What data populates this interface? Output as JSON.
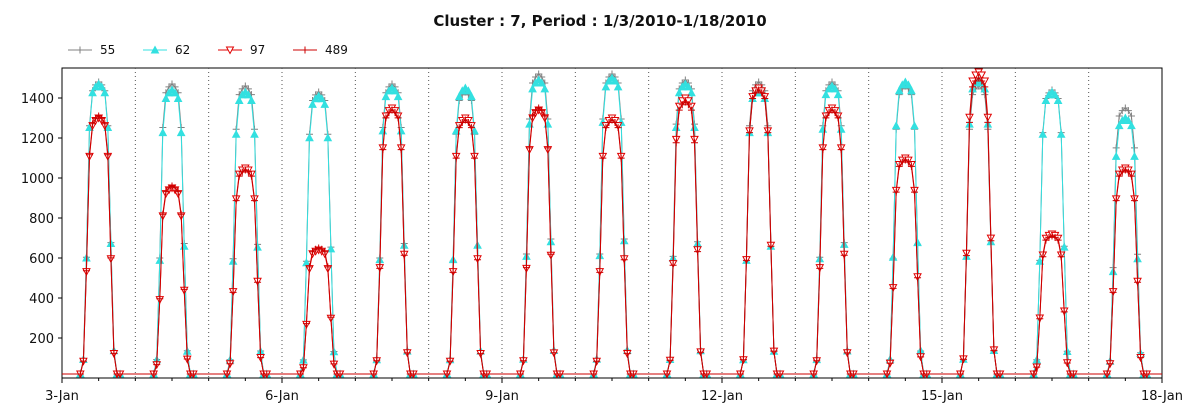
{
  "chart_data": {
    "type": "line",
    "title": "Cluster : 7, Period : 1/3/2010-1/18/2010",
    "xlabel": "",
    "ylabel": "",
    "x_range": [
      "2010-01-03",
      "2010-01-18"
    ],
    "x_ticks": [
      {
        "date": "2010-01-03",
        "label": "3-Jan"
      },
      {
        "date": "2010-01-06",
        "label": "6-Jan"
      },
      {
        "date": "2010-01-09",
        "label": "9-Jan"
      },
      {
        "date": "2010-01-12",
        "label": "12-Jan"
      },
      {
        "date": "2010-01-15",
        "label": "15-Jan"
      },
      {
        "date": "2010-01-18",
        "label": "18-Jan"
      }
    ],
    "ylim": [
      0,
      1550
    ],
    "y_ticks": [
      200,
      400,
      600,
      800,
      1000,
      1200,
      1400
    ],
    "grid": "vertical dotted lines at each day",
    "legend_position": "top-left",
    "colors": {
      "55": "#808080",
      "62": "#33e0e0",
      "97": "#e00000",
      "489": "#cc0000"
    },
    "day_template": {
      "hour": [
        6,
        7,
        8,
        9,
        10,
        11,
        12,
        13,
        14,
        15,
        16,
        17,
        18,
        19
      ],
      "shape": [
        0,
        0.05,
        0.4,
        0.85,
        0.97,
        0.99,
        1.0,
        0.99,
        0.97,
        0.85,
        0.45,
        0.08,
        0,
        0
      ]
    },
    "days": [
      {
        "date": "2010-01-03",
        "peaks": {
          "55": 1480,
          "62": 1470,
          "97": 1300,
          "489": 1310
        }
      },
      {
        "date": "2010-01-04",
        "peaks": {
          "55": 1470,
          "62": 1440,
          "97": 950,
          "489": 960
        }
      },
      {
        "date": "2010-01-05",
        "peaks": {
          "55": 1460,
          "62": 1430,
          "97": 1050,
          "489": 1040
        }
      },
      {
        "date": "2010-01-06",
        "peaks": {
          "55": 1430,
          "62": 1410,
          "97": 640,
          "489": 650
        }
      },
      {
        "date": "2010-01-07",
        "peaks": {
          "55": 1470,
          "62": 1450,
          "97": 1350,
          "489": 1340
        }
      },
      {
        "date": "2010-01-08",
        "peaks": {
          "55": 1430,
          "62": 1450,
          "97": 1300,
          "489": 1290
        }
      },
      {
        "date": "2010-01-09",
        "peaks": {
          "55": 1520,
          "62": 1490,
          "97": 1340,
          "489": 1350
        }
      },
      {
        "date": "2010-01-10",
        "peaks": {
          "55": 1520,
          "62": 1500,
          "97": 1300,
          "489": 1290
        }
      },
      {
        "date": "2010-01-11",
        "peaks": {
          "55": 1490,
          "62": 1470,
          "97": 1400,
          "489": 1380
        }
      },
      {
        "date": "2010-01-12",
        "peaks": {
          "55": 1480,
          "62": 1440,
          "97": 1450,
          "489": 1440
        }
      },
      {
        "date": "2010-01-13",
        "peaks": {
          "55": 1480,
          "62": 1460,
          "97": 1350,
          "489": 1340
        }
      },
      {
        "date": "2010-01-14",
        "peaks": {
          "55": 1460,
          "62": 1480,
          "97": 1100,
          "489": 1090
        }
      },
      {
        "date": "2010-01-15",
        "peaks": {
          "55": 1460,
          "62": 1490,
          "97": 1530,
          "489": 1500
        }
      },
      {
        "date": "2010-01-16",
        "peaks": {
          "55": 1440,
          "62": 1430,
          "97": 720,
          "489": 710
        }
      },
      {
        "date": "2010-01-17",
        "peaks": {
          "55": 1350,
          "62": 1300,
          "97": 1050,
          "489": 1040
        }
      }
    ],
    "baseline": 20,
    "series": [
      {
        "name": "55",
        "marker": "plus"
      },
      {
        "name": "62",
        "marker": "triangle-up"
      },
      {
        "name": "97",
        "marker": "triangle-down"
      },
      {
        "name": "489",
        "marker": "plus"
      }
    ]
  }
}
